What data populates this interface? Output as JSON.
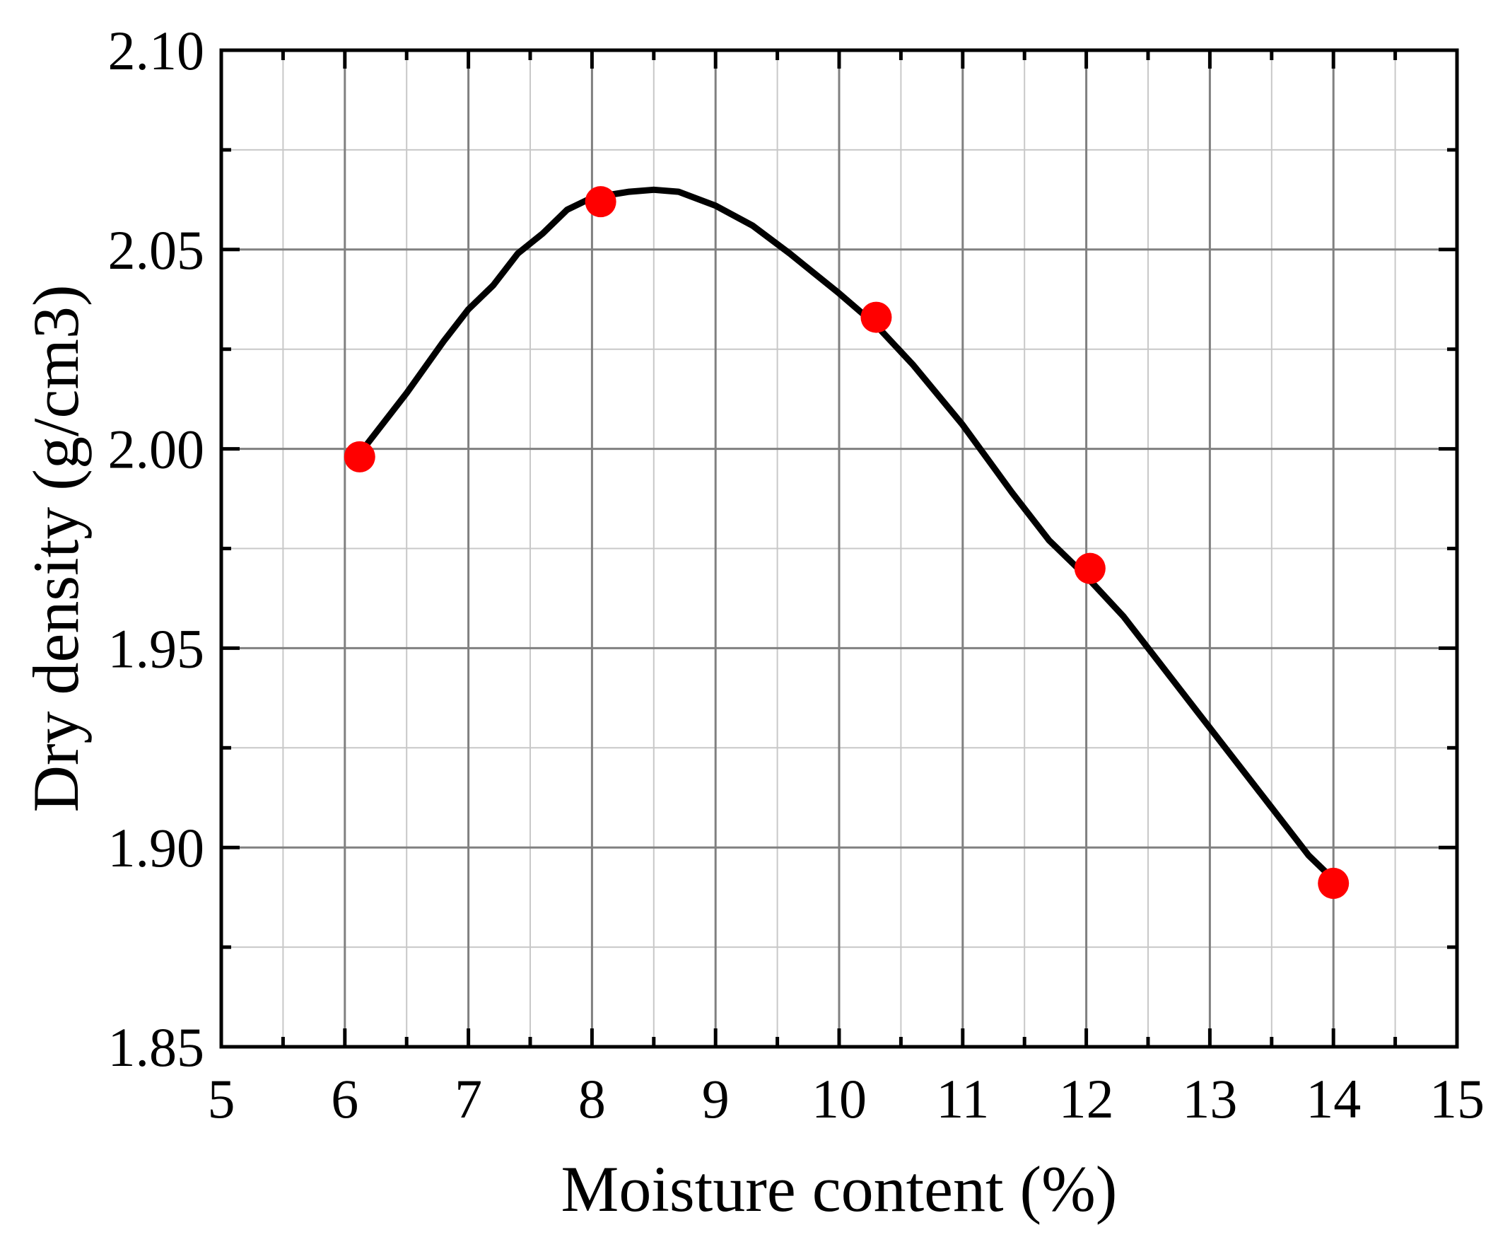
{
  "chart_data": {
    "type": "line",
    "xlabel": "Moisture content (%)",
    "ylabel": "Dry density (g/cm3)",
    "xlim": [
      5,
      15
    ],
    "ylim": [
      1.85,
      2.1
    ],
    "x_ticks": [
      "5",
      "6",
      "7",
      "8",
      "9",
      "10",
      "11",
      "12",
      "13",
      "14",
      "15"
    ],
    "y_ticks": [
      "1.85",
      "1.90",
      "1.95",
      "2.00",
      "2.05",
      "2.10"
    ],
    "x_tick_values": [
      5,
      6,
      7,
      8,
      9,
      10,
      11,
      12,
      13,
      14,
      15
    ],
    "y_tick_values": [
      1.85,
      1.9,
      1.95,
      2.0,
      2.05,
      2.1
    ],
    "x_minor_step": 0.5,
    "y_minor_step": 0.025,
    "grid": true,
    "line_color": "#000000",
    "marker_color": "#ff0000",
    "series": [
      {
        "kind": "fit-curve",
        "x": [
          6.15,
          6.5,
          6.8,
          7.0,
          7.2,
          7.4,
          7.6,
          7.8,
          8.0,
          8.3,
          8.5,
          8.7,
          9.0,
          9.3,
          9.6,
          10.0,
          10.3,
          10.6,
          11.0,
          11.4,
          11.7,
          12.0,
          12.3,
          12.6,
          12.9,
          13.2,
          13.5,
          13.8,
          14.0
        ],
        "y": [
          2.0,
          2.014,
          2.027,
          2.035,
          2.041,
          2.049,
          2.054,
          2.06,
          2.063,
          2.0645,
          2.065,
          2.0645,
          2.061,
          2.056,
          2.049,
          2.039,
          2.031,
          2.021,
          2.006,
          1.989,
          1.977,
          1.968,
          1.958,
          1.946,
          1.934,
          1.922,
          1.91,
          1.898,
          1.892
        ]
      },
      {
        "kind": "measured-points",
        "x": [
          6.12,
          8.07,
          10.3,
          12.03,
          14.0
        ],
        "y": [
          1.998,
          2.062,
          2.033,
          1.97,
          1.891
        ]
      }
    ]
  }
}
